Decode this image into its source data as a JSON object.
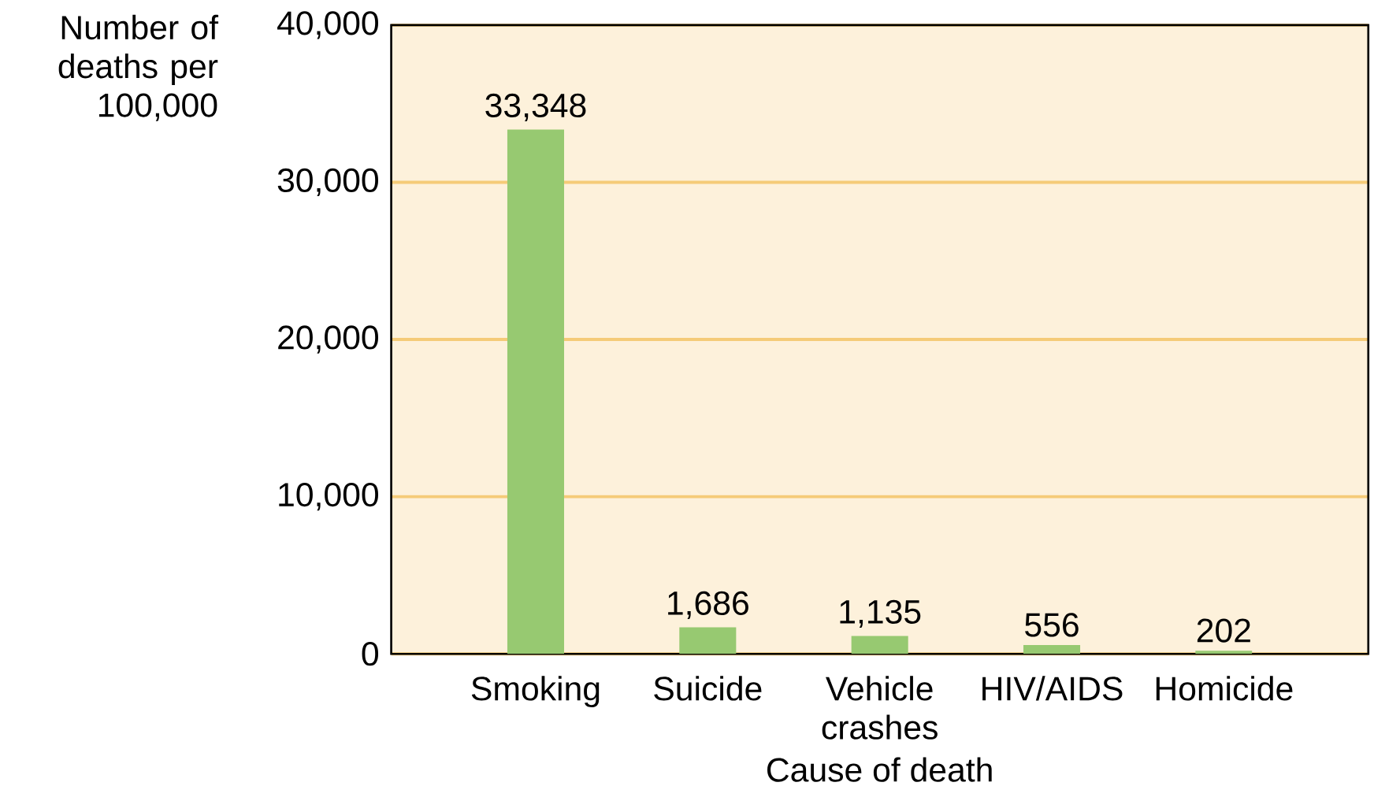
{
  "chart_data": {
    "type": "bar",
    "xlabel": "Cause of death",
    "ylabel": "Number of deaths per 100,000",
    "categories": [
      "Smoking",
      "Suicide",
      "Vehicle crashes",
      "HIV/AIDS",
      "Homicide"
    ],
    "values": [
      33348,
      1686,
      1135,
      556,
      202
    ],
    "value_labels": [
      "33,348",
      "1,686",
      "1,135",
      "556",
      "202"
    ],
    "color": "#97c971",
    "ylim": [
      0,
      40000
    ],
    "yticks": [
      0,
      {
        "value": 10000,
        "label": "10,000"
      },
      {
        "value": 20000,
        "label": "20,000"
      },
      {
        "value": 30000,
        "label": "30,000"
      },
      {
        "value": 40000,
        "label": "40,000"
      }
    ],
    "grid": "y"
  }
}
